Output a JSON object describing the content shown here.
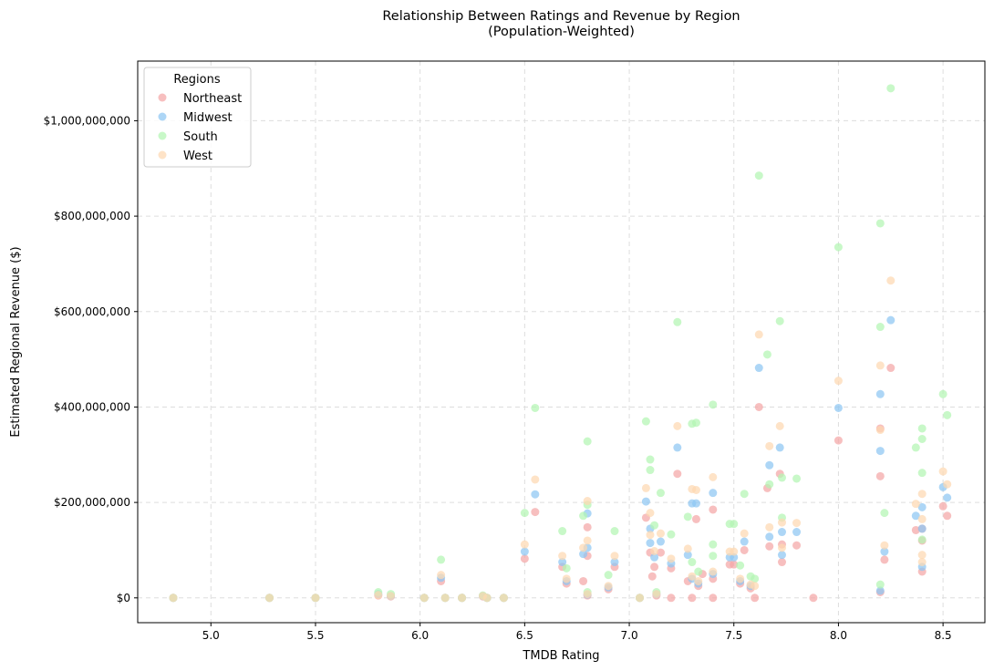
{
  "chart_data": {
    "type": "scatter",
    "title": "Relationship Between Ratings and Revenue by Region",
    "subtitle": "(Population-Weighted)",
    "xlabel": "TMDB Rating",
    "ylabel": "Estimated Regional Revenue ($)",
    "xlim": [
      4.65,
      8.7
    ],
    "ylim": [
      -52000000,
      1125000000
    ],
    "xticks": [
      5.0,
      5.5,
      6.0,
      6.5,
      7.0,
      7.5,
      8.0,
      8.5
    ],
    "xtick_labels": [
      "5.0",
      "5.5",
      "6.0",
      "6.5",
      "7.0",
      "7.5",
      "8.0",
      "8.5"
    ],
    "yticks": [
      0,
      200000000,
      400000000,
      600000000,
      800000000,
      1000000000
    ],
    "ytick_labels": [
      "$0",
      "$200,000,000",
      "$400,000,000",
      "$600,000,000",
      "$800,000,000",
      "$1,000,000,000"
    ],
    "grid": true,
    "legend": {
      "title": "Regions",
      "placement": "top-left"
    },
    "series": [
      {
        "name": "Northeast",
        "color": "#f4a6a6",
        "points": [
          [
            4.82,
            0
          ],
          [
            5.28,
            0
          ],
          [
            5.5,
            0
          ],
          [
            5.8,
            5000000
          ],
          [
            5.86,
            3000000
          ],
          [
            6.02,
            0
          ],
          [
            6.1,
            35000000
          ],
          [
            6.12,
            0
          ],
          [
            6.2,
            0
          ],
          [
            6.3,
            3000000
          ],
          [
            6.32,
            0
          ],
          [
            6.4,
            0
          ],
          [
            6.5,
            82000000
          ],
          [
            6.55,
            180000000
          ],
          [
            6.68,
            65000000
          ],
          [
            6.7,
            30000000
          ],
          [
            6.78,
            35000000
          ],
          [
            6.8,
            88000000
          ],
          [
            6.8,
            148000000
          ],
          [
            6.8,
            5000000
          ],
          [
            6.9,
            18000000
          ],
          [
            6.93,
            65000000
          ],
          [
            7.05,
            0
          ],
          [
            7.08,
            168000000
          ],
          [
            7.1,
            95000000
          ],
          [
            7.11,
            45000000
          ],
          [
            7.12,
            65000000
          ],
          [
            7.13,
            5000000
          ],
          [
            7.15,
            95000000
          ],
          [
            7.2,
            62000000
          ],
          [
            7.2,
            0
          ],
          [
            7.23,
            260000000
          ],
          [
            7.28,
            35000000
          ],
          [
            7.3,
            0
          ],
          [
            7.32,
            165000000
          ],
          [
            7.33,
            25000000
          ],
          [
            7.35,
            50000000
          ],
          [
            7.4,
            185000000
          ],
          [
            7.4,
            40000000
          ],
          [
            7.4,
            0
          ],
          [
            7.48,
            70000000
          ],
          [
            7.5,
            70000000
          ],
          [
            7.53,
            30000000
          ],
          [
            7.55,
            100000000
          ],
          [
            7.58,
            20000000
          ],
          [
            7.6,
            0
          ],
          [
            7.62,
            400000000
          ],
          [
            7.66,
            230000000
          ],
          [
            7.67,
            108000000
          ],
          [
            7.72,
            260000000
          ],
          [
            7.73,
            75000000
          ],
          [
            7.73,
            112000000
          ],
          [
            7.8,
            110000000
          ],
          [
            7.88,
            0
          ],
          [
            8.0,
            330000000
          ],
          [
            8.2,
            355000000
          ],
          [
            8.2,
            255000000
          ],
          [
            8.2,
            12000000
          ],
          [
            8.22,
            80000000
          ],
          [
            8.25,
            482000000
          ],
          [
            8.37,
            142000000
          ],
          [
            8.4,
            55000000
          ],
          [
            8.4,
            120000000
          ],
          [
            8.4,
            145000000
          ],
          [
            8.5,
            192000000
          ],
          [
            8.52,
            172000000
          ]
        ]
      },
      {
        "name": "Midwest",
        "color": "#8ec6f2",
        "points": [
          [
            4.82,
            0
          ],
          [
            5.28,
            0
          ],
          [
            5.5,
            0
          ],
          [
            5.8,
            8000000
          ],
          [
            5.86,
            4000000
          ],
          [
            6.02,
            0
          ],
          [
            6.1,
            42000000
          ],
          [
            6.12,
            0
          ],
          [
            6.2,
            0
          ],
          [
            6.3,
            4000000
          ],
          [
            6.32,
            0
          ],
          [
            6.4,
            0
          ],
          [
            6.5,
            97000000
          ],
          [
            6.55,
            217000000
          ],
          [
            6.68,
            75000000
          ],
          [
            6.7,
            35000000
          ],
          [
            6.78,
            92000000
          ],
          [
            6.8,
            177000000
          ],
          [
            6.8,
            105000000
          ],
          [
            6.8,
            7000000
          ],
          [
            6.9,
            22000000
          ],
          [
            6.93,
            75000000
          ],
          [
            7.05,
            0
          ],
          [
            7.08,
            202000000
          ],
          [
            7.1,
            115000000
          ],
          [
            7.1,
            145000000
          ],
          [
            7.12,
            85000000
          ],
          [
            7.13,
            8000000
          ],
          [
            7.15,
            118000000
          ],
          [
            7.2,
            72000000
          ],
          [
            7.23,
            315000000
          ],
          [
            7.28,
            90000000
          ],
          [
            7.3,
            198000000
          ],
          [
            7.3,
            40000000
          ],
          [
            7.32,
            198000000
          ],
          [
            7.33,
            30000000
          ],
          [
            7.4,
            220000000
          ],
          [
            7.4,
            50000000
          ],
          [
            7.48,
            85000000
          ],
          [
            7.5,
            85000000
          ],
          [
            7.53,
            35000000
          ],
          [
            7.55,
            118000000
          ],
          [
            7.58,
            25000000
          ],
          [
            7.62,
            482000000
          ],
          [
            7.67,
            278000000
          ],
          [
            7.67,
            128000000
          ],
          [
            7.72,
            315000000
          ],
          [
            7.73,
            90000000
          ],
          [
            7.73,
            138000000
          ],
          [
            7.8,
            138000000
          ],
          [
            8.0,
            398000000
          ],
          [
            8.2,
            427000000
          ],
          [
            8.2,
            308000000
          ],
          [
            8.2,
            15000000
          ],
          [
            8.22,
            97000000
          ],
          [
            8.25,
            582000000
          ],
          [
            8.37,
            172000000
          ],
          [
            8.4,
            65000000
          ],
          [
            8.4,
            190000000
          ],
          [
            8.4,
            145000000
          ],
          [
            8.5,
            232000000
          ],
          [
            8.52,
            210000000
          ]
        ]
      },
      {
        "name": "South",
        "color": "#b3f5b3",
        "points": [
          [
            4.82,
            0
          ],
          [
            5.28,
            0
          ],
          [
            5.5,
            0
          ],
          [
            5.8,
            12000000
          ],
          [
            5.86,
            8000000
          ],
          [
            6.02,
            0
          ],
          [
            6.1,
            80000000
          ],
          [
            6.12,
            0
          ],
          [
            6.2,
            0
          ],
          [
            6.3,
            5000000
          ],
          [
            6.32,
            0
          ],
          [
            6.4,
            0
          ],
          [
            6.5,
            178000000
          ],
          [
            6.55,
            398000000
          ],
          [
            6.68,
            140000000
          ],
          [
            6.7,
            62000000
          ],
          [
            6.78,
            172000000
          ],
          [
            6.8,
            328000000
          ],
          [
            6.8,
            195000000
          ],
          [
            6.8,
            12000000
          ],
          [
            6.9,
            48000000
          ],
          [
            6.93,
            140000000
          ],
          [
            7.05,
            0
          ],
          [
            7.08,
            370000000
          ],
          [
            7.1,
            268000000
          ],
          [
            7.1,
            290000000
          ],
          [
            7.12,
            152000000
          ],
          [
            7.13,
            12000000
          ],
          [
            7.15,
            220000000
          ],
          [
            7.2,
            133000000
          ],
          [
            7.23,
            578000000
          ],
          [
            7.28,
            170000000
          ],
          [
            7.3,
            365000000
          ],
          [
            7.3,
            75000000
          ],
          [
            7.32,
            367000000
          ],
          [
            7.33,
            55000000
          ],
          [
            7.4,
            405000000
          ],
          [
            7.4,
            88000000
          ],
          [
            7.4,
            112000000
          ],
          [
            7.48,
            155000000
          ],
          [
            7.5,
            155000000
          ],
          [
            7.53,
            68000000
          ],
          [
            7.55,
            218000000
          ],
          [
            7.58,
            45000000
          ],
          [
            7.6,
            40000000
          ],
          [
            7.62,
            885000000
          ],
          [
            7.66,
            510000000
          ],
          [
            7.67,
            238000000
          ],
          [
            7.72,
            580000000
          ],
          [
            7.73,
            168000000
          ],
          [
            7.73,
            252000000
          ],
          [
            7.8,
            250000000
          ],
          [
            8.0,
            735000000
          ],
          [
            8.2,
            785000000
          ],
          [
            8.2,
            568000000
          ],
          [
            8.2,
            28000000
          ],
          [
            8.22,
            178000000
          ],
          [
            8.25,
            1068000000
          ],
          [
            8.37,
            315000000
          ],
          [
            8.4,
            122000000
          ],
          [
            8.4,
            355000000
          ],
          [
            8.4,
            333000000
          ],
          [
            8.4,
            262000000
          ],
          [
            8.5,
            427000000
          ],
          [
            8.52,
            383000000
          ]
        ]
      },
      {
        "name": "West",
        "color": "#fed8b1",
        "points": [
          [
            4.82,
            0
          ],
          [
            5.28,
            0
          ],
          [
            5.5,
            0
          ],
          [
            5.8,
            6000000
          ],
          [
            5.86,
            4000000
          ],
          [
            6.02,
            0
          ],
          [
            6.1,
            48000000
          ],
          [
            6.12,
            0
          ],
          [
            6.2,
            0
          ],
          [
            6.3,
            4000000
          ],
          [
            6.32,
            0
          ],
          [
            6.4,
            0
          ],
          [
            6.5,
            112000000
          ],
          [
            6.55,
            248000000
          ],
          [
            6.68,
            88000000
          ],
          [
            6.7,
            40000000
          ],
          [
            6.78,
            105000000
          ],
          [
            6.8,
            203000000
          ],
          [
            6.8,
            120000000
          ],
          [
            6.8,
            8000000
          ],
          [
            6.9,
            25000000
          ],
          [
            6.93,
            88000000
          ],
          [
            7.05,
            0
          ],
          [
            7.08,
            230000000
          ],
          [
            7.1,
            132000000
          ],
          [
            7.1,
            178000000
          ],
          [
            7.12,
            98000000
          ],
          [
            7.13,
            8000000
          ],
          [
            7.15,
            135000000
          ],
          [
            7.2,
            82000000
          ],
          [
            7.23,
            360000000
          ],
          [
            7.28,
            103000000
          ],
          [
            7.3,
            228000000
          ],
          [
            7.3,
            45000000
          ],
          [
            7.32,
            226000000
          ],
          [
            7.33,
            35000000
          ],
          [
            7.4,
            253000000
          ],
          [
            7.4,
            55000000
          ],
          [
            7.48,
            97000000
          ],
          [
            7.5,
            97000000
          ],
          [
            7.53,
            40000000
          ],
          [
            7.55,
            135000000
          ],
          [
            7.58,
            28000000
          ],
          [
            7.6,
            25000000
          ],
          [
            7.62,
            552000000
          ],
          [
            7.67,
            318000000
          ],
          [
            7.67,
            148000000
          ],
          [
            7.72,
            360000000
          ],
          [
            7.73,
            105000000
          ],
          [
            7.73,
            158000000
          ],
          [
            7.8,
            157000000
          ],
          [
            8.0,
            455000000
          ],
          [
            8.2,
            487000000
          ],
          [
            8.2,
            352000000
          ],
          [
            8.22,
            110000000
          ],
          [
            8.25,
            665000000
          ],
          [
            8.37,
            197000000
          ],
          [
            8.4,
            75000000
          ],
          [
            8.4,
            218000000
          ],
          [
            8.4,
            165000000
          ],
          [
            8.4,
            90000000
          ],
          [
            8.5,
            265000000
          ],
          [
            8.52,
            238000000
          ]
        ]
      }
    ]
  }
}
